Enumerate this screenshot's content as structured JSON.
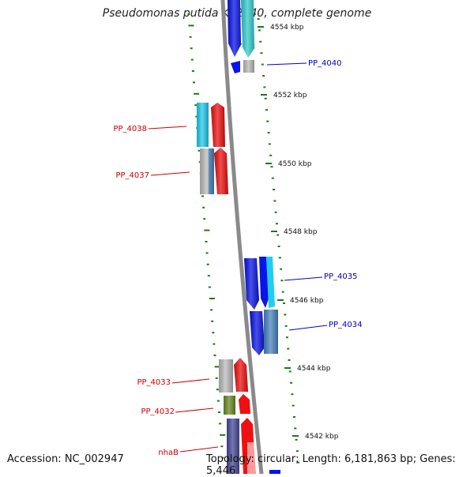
{
  "title": "Pseudomonas putida KT2440, complete genome",
  "footer": {
    "accession": "Accession: NC_002947",
    "summary": "Topology: circular; Length: 6,181,863 bp; Genes: 5,446"
  },
  "scale_labels": [
    "4554 kbp",
    "4552 kbp",
    "4550 kbp",
    "4548 kbp",
    "4546 kbp",
    "4544 kbp",
    "4542 kbp"
  ],
  "gene_labels": {
    "forward": [
      "PP_4040",
      "PP_4035",
      "PP_4034"
    ],
    "reverse": [
      "PP_4038",
      "PP_4037",
      "PP_4033",
      "PP_4032",
      "nhaB"
    ]
  },
  "colors": {
    "backbone": "#8a8a8a",
    "forward_label": "#0000cc",
    "reverse_label": "#cc0000",
    "tick": "#1a7a1a",
    "blue": "#0a14e6",
    "cyan": "#22ccee",
    "teal": "#33cccc",
    "steel": "#4a86c0",
    "gray": "#bcbcbc",
    "red": "#ee1111",
    "olive": "#6b8c22",
    "navy": "#4a4a9a",
    "pink": "#ff9999"
  }
}
